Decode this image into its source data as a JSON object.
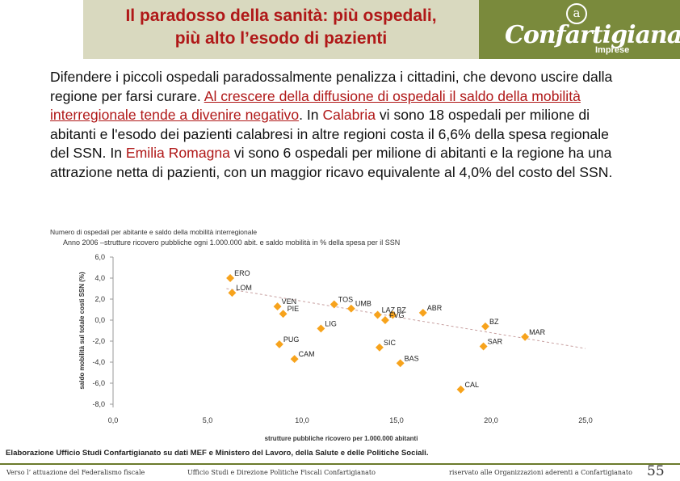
{
  "header": {
    "title_line1": "Il paradosso della sanità: più ospedali,",
    "title_line2": "più alto l’esodo di pazienti",
    "logo_symbol": "a",
    "logo_name": "Confartigianato",
    "logo_sub": "Imprese"
  },
  "paragraph": {
    "p1": "Difendere i piccoli ospedali paradossalmente penalizza i cittadini, che devono uscire dalla regione per farsi curare. ",
    "p2_underlined": "Al crescere della diffusione di ospedali il saldo della mobilità interregionale tende a divenire negativo",
    "p3": ". In ",
    "calabria": "Calabria",
    "p4": " vi sono 18 ospedali per milione di abitanti e l'esodo dei pazienti calabresi in altre regioni costa il 6,6% della spesa regionale del SSN. In ",
    "emilia": "Emilia Romagna",
    "p5": " vi sono 6 ospedali per milione di abitanti e la regione ha una attrazione netta di pazienti, con un maggior ricavo equivalente al 4,0% del costo del SSN."
  },
  "chart_overlap_title": "Numero di ospedali per abitante e saldo della mobilità interregionale",
  "chart_subtitle": "Anno 2006 –strutture ricovero pubbliche ogni 1.000.000 abit. e saldo mobilità in % della spesa per il SSN",
  "chart_data": {
    "type": "scatter",
    "xlabel": "strutture pubbliche ricovero per 1.000.000 abitanti",
    "ylabel": "saldo mobilità sul totale costi SSN (%)",
    "xlim": [
      0,
      25
    ],
    "ylim": [
      -8,
      6
    ],
    "x_ticks": [
      "0,0",
      "5,0",
      "10,0",
      "15,0",
      "20,0",
      "25,0"
    ],
    "y_ticks": [
      "6,0",
      "4,0",
      "2,0",
      "0,0",
      "-2,0",
      "-4,0",
      "-6,0",
      "-8,0"
    ],
    "marker_color": "#f7a31c",
    "trend_color": "#c8a0a0",
    "trendline": {
      "x": [
        6,
        25
      ],
      "y": [
        3.0,
        -2.7
      ]
    },
    "points": [
      {
        "label": "ERO",
        "x": 6.2,
        "y": 4.0
      },
      {
        "label": "LOM",
        "x": 6.3,
        "y": 2.6
      },
      {
        "label": "VEN",
        "x": 8.7,
        "y": 1.3
      },
      {
        "label": "PIE",
        "x": 9.0,
        "y": 0.6
      },
      {
        "label": "TOS",
        "x": 11.7,
        "y": 1.5
      },
      {
        "label": "UMB",
        "x": 12.6,
        "y": 1.1
      },
      {
        "label": "LIG",
        "x": 11.0,
        "y": -0.8
      },
      {
        "label": "LAZ",
        "x": 14.0,
        "y": 0.5
      },
      {
        "label": "BZ",
        "x": 14.8,
        "y": 0.5
      },
      {
        "label": "FVG",
        "x": 14.4,
        "y": 0.0
      },
      {
        "label": "ABR",
        "x": 16.4,
        "y": 0.7
      },
      {
        "label": "BZ",
        "x": 19.7,
        "y": -0.6
      },
      {
        "label": "PUG",
        "x": 8.8,
        "y": -2.3
      },
      {
        "label": "CAM",
        "x": 9.6,
        "y": -3.7
      },
      {
        "label": "SIC",
        "x": 14.1,
        "y": -2.6
      },
      {
        "label": "SAR",
        "x": 19.6,
        "y": -2.5
      },
      {
        "label": "MAR",
        "x": 21.8,
        "y": -1.6
      },
      {
        "label": "BAS",
        "x": 15.2,
        "y": -4.1
      },
      {
        "label": "CAL",
        "x": 18.4,
        "y": -6.6
      }
    ]
  },
  "source": "Elaborazione Ufficio Studi Confartigianato su dati MEF e Ministero del Lavoro, della Salute e delle Politiche Sociali.",
  "footer": {
    "left": "Verso l’ attuazione del Federalismo fiscale",
    "center": "Ufficio Studi e Direzione Politiche Fiscali Confartigianato",
    "right": "riservato alle Organizzazioni aderenti a Confartigianato",
    "page": "55"
  }
}
